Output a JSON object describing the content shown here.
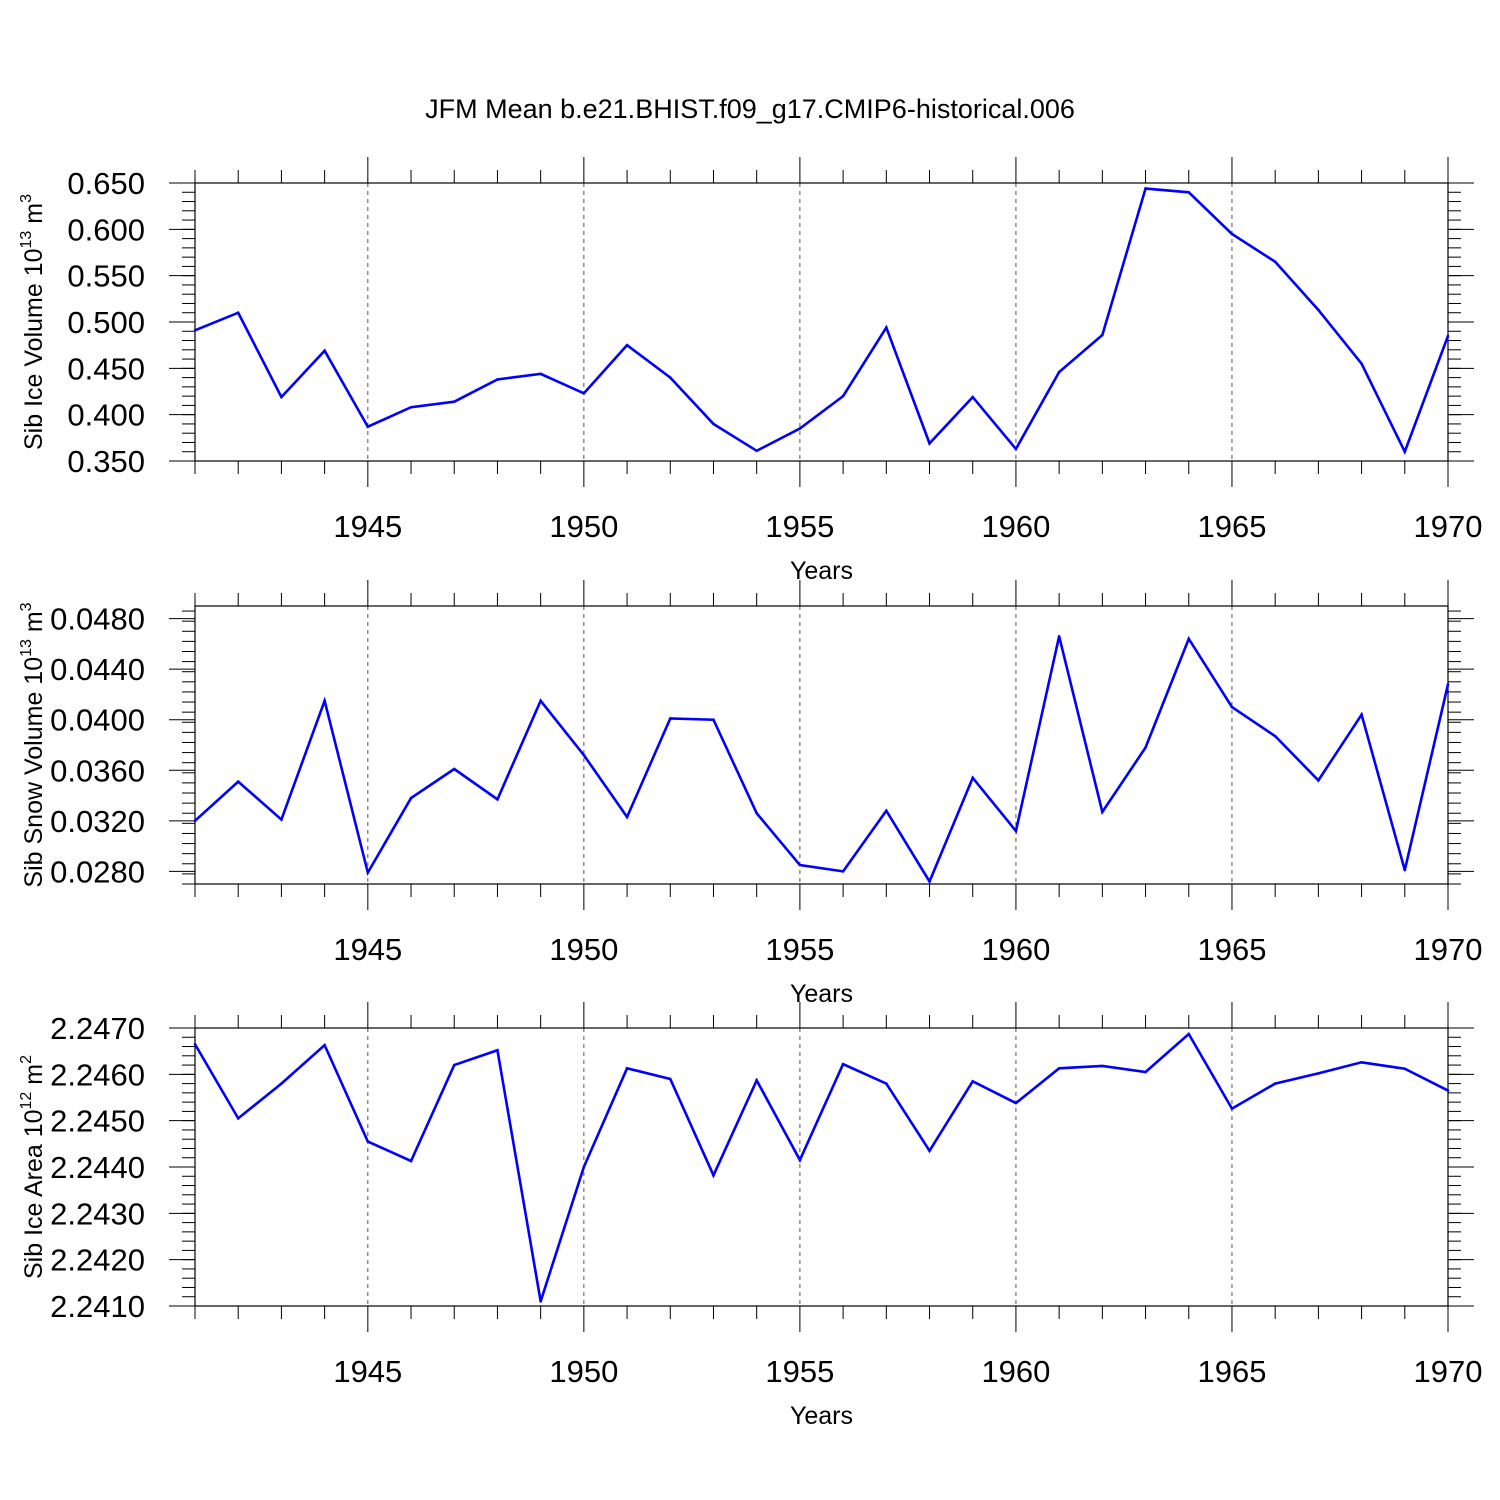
{
  "title": "JFM Mean b.e21.BHIST.f09_g17.CMIP6-historical.006",
  "line_color": "#0000ff",
  "chart_data": [
    {
      "type": "line",
      "id": "ice-volume",
      "ylabel": {
        "text": "Sib Ice Volume 10",
        "exp": "13",
        "unit": " m",
        "unit_exp": "3"
      },
      "xlabel": "Years",
      "xlim": [
        1941,
        1970
      ],
      "ylim": [
        0.35,
        0.65
      ],
      "yticks": [
        "0.350",
        "0.400",
        "0.450",
        "0.500",
        "0.550",
        "0.600",
        "0.650"
      ],
      "xticks": [
        "1945",
        "1950",
        "1955",
        "1960",
        "1965",
        "1970"
      ],
      "x": [
        1941,
        1942,
        1943,
        1944,
        1945,
        1946,
        1947,
        1948,
        1949,
        1950,
        1951,
        1952,
        1953,
        1954,
        1955,
        1956,
        1957,
        1958,
        1959,
        1960,
        1961,
        1962,
        1963,
        1964,
        1965,
        1966,
        1967,
        1968,
        1969,
        1970
      ],
      "values": [
        0.491,
        0.51,
        0.419,
        0.469,
        0.387,
        0.408,
        0.414,
        0.438,
        0.444,
        0.423,
        0.475,
        0.44,
        0.39,
        0.361,
        0.385,
        0.42,
        0.494,
        0.369,
        0.419,
        0.363,
        0.446,
        0.486,
        0.644,
        0.64,
        0.595,
        0.565,
        0.513,
        0.455,
        0.36,
        0.485
      ]
    },
    {
      "type": "line",
      "id": "snow-volume",
      "ylabel": {
        "text": "Sib Snow Volume 10",
        "exp": "13",
        "unit": " m",
        "unit_exp": "3"
      },
      "xlabel": "Years",
      "xlim": [
        1941,
        1970
      ],
      "ylim": [
        0.027,
        0.049
      ],
      "yticks": [
        "0.0280",
        "0.0320",
        "0.0360",
        "0.0400",
        "0.0440",
        "0.0480"
      ],
      "xticks": [
        "1945",
        "1950",
        "1955",
        "1960",
        "1965",
        "1970"
      ],
      "x": [
        1941,
        1942,
        1943,
        1944,
        1945,
        1946,
        1947,
        1948,
        1949,
        1950,
        1951,
        1952,
        1953,
        1954,
        1955,
        1956,
        1957,
        1958,
        1959,
        1960,
        1961,
        1962,
        1963,
        1964,
        1965,
        1966,
        1967,
        1968,
        1969,
        1970
      ],
      "values": [
        0.032,
        0.0351,
        0.0321,
        0.0415,
        0.0279,
        0.0338,
        0.0361,
        0.0337,
        0.0415,
        0.0372,
        0.0323,
        0.0401,
        0.04,
        0.0326,
        0.0285,
        0.028,
        0.0328,
        0.0272,
        0.0354,
        0.0312,
        0.0466,
        0.0327,
        0.0378,
        0.0464,
        0.041,
        0.0387,
        0.0352,
        0.0404,
        0.0281,
        0.0428
      ]
    },
    {
      "type": "line",
      "id": "ice-area",
      "ylabel": {
        "text": "Sib Ice Area 10",
        "exp": "12",
        "unit": " m",
        "unit_exp": "2"
      },
      "xlabel": "Years",
      "xlim": [
        1941,
        1970
      ],
      "ylim": [
        2.241,
        2.247
      ],
      "yticks": [
        "2.2410",
        "2.2420",
        "2.2430",
        "2.2440",
        "2.2450",
        "2.2460",
        "2.2470"
      ],
      "xticks": [
        "1945",
        "1950",
        "1955",
        "1960",
        "1965",
        "1970"
      ],
      "x": [
        1941,
        1942,
        1943,
        1944,
        1945,
        1946,
        1947,
        1948,
        1949,
        1950,
        1951,
        1952,
        1953,
        1954,
        1955,
        1956,
        1957,
        1958,
        1959,
        1960,
        1961,
        1962,
        1963,
        1964,
        1965,
        1966,
        1967,
        1968,
        1969,
        1970
      ],
      "values": [
        2.24665,
        2.24505,
        2.2458,
        2.24663,
        2.24455,
        2.24413,
        2.2462,
        2.24652,
        2.2411,
        2.244,
        2.24613,
        2.2459,
        2.24382,
        2.24587,
        2.24415,
        2.24622,
        2.2458,
        2.24435,
        2.24585,
        2.24538,
        2.24613,
        2.24618,
        2.24605,
        2.24687,
        2.24526,
        2.2458,
        2.24602,
        2.24626,
        2.24612,
        2.24565
      ]
    }
  ]
}
